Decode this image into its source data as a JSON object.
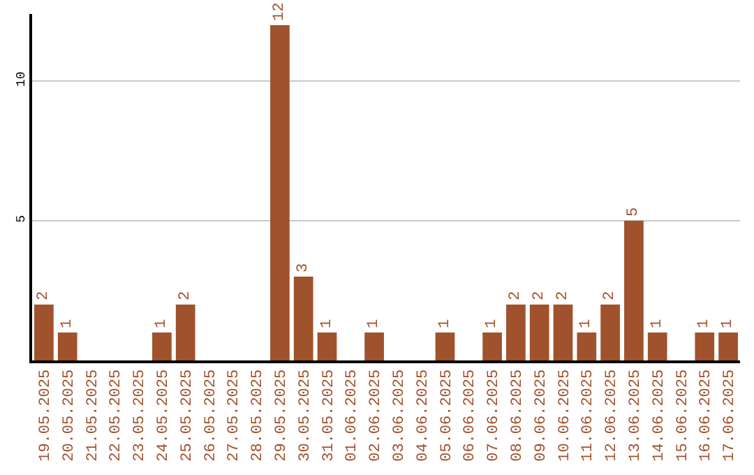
{
  "chart_data": {
    "type": "bar",
    "categories": [
      "19.05.2025",
      "20.05.2025",
      "21.05.2025",
      "22.05.2025",
      "23.05.2025",
      "24.05.2025",
      "25.05.2025",
      "26.05.2025",
      "27.05.2025",
      "28.05.2025",
      "29.05.2025",
      "30.05.2025",
      "31.05.2025",
      "01.06.2025",
      "02.06.2025",
      "03.06.2025",
      "04.06.2025",
      "05.06.2025",
      "06.06.2025",
      "07.06.2025",
      "08.06.2025",
      "09.06.2025",
      "10.06.2025",
      "11.06.2025",
      "12.06.2025",
      "13.06.2025",
      "14.06.2025",
      "15.06.2025",
      "16.06.2025",
      "17.06.2025"
    ],
    "values": [
      2,
      1,
      0,
      0,
      0,
      1,
      2,
      0,
      0,
      0,
      12,
      3,
      1,
      0,
      1,
      0,
      0,
      1,
      0,
      1,
      2,
      2,
      2,
      1,
      2,
      5,
      1,
      0,
      1,
      1
    ],
    "value_labels": [
      "2",
      "1",
      null,
      null,
      null,
      "1",
      "2",
      null,
      null,
      null,
      "12",
      "3",
      "1",
      null,
      "1",
      null,
      null,
      "1",
      null,
      "1",
      "2",
      "2",
      "2",
      "1",
      "2",
      "5",
      "1",
      null,
      "1",
      "1"
    ],
    "color": "#a0522d",
    "ylim": [
      0,
      12.4
    ],
    "yticks": [
      5,
      10
    ],
    "grid": "y"
  }
}
